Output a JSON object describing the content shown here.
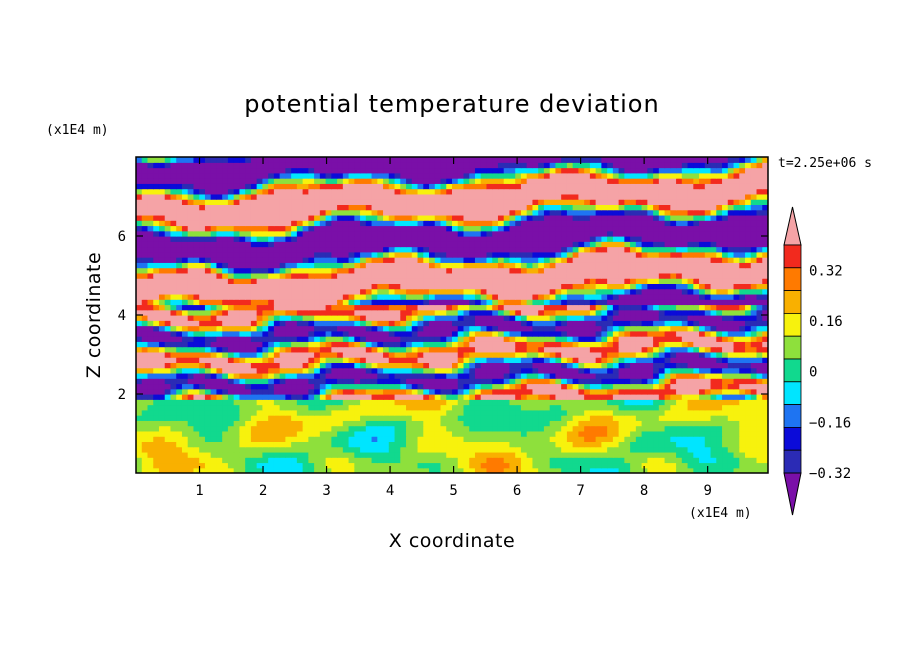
{
  "chart_data": {
    "type": "heatmap",
    "title": "potential temperature deviation",
    "xlabel": "X coordinate",
    "ylabel": "Z coordinate",
    "x_unit": "(x1E4 m)",
    "y_unit": "(x1E4 m)",
    "time_label": "t=2.25e+06 s",
    "xlim": [
      0,
      9.95
    ],
    "ylim": [
      0,
      8.0
    ],
    "x_ticks": [
      "1",
      "2",
      "3",
      "4",
      "5",
      "6",
      "7",
      "8",
      "9"
    ],
    "y_ticks": [
      "2",
      "4",
      "6"
    ],
    "colorbar": {
      "tick_labels": [
        "0.32",
        "0.16",
        "0",
        "-0.16",
        "-0.32"
      ],
      "tick_values": [
        0.32,
        0.16,
        0,
        -0.16,
        -0.32
      ],
      "levels": [
        -0.4,
        -0.32,
        -0.24,
        -0.16,
        -0.08,
        0,
        0.08,
        0.16,
        0.24,
        0.32,
        0.4
      ],
      "colors": [
        "#7a0fa8",
        "#2b2bb5",
        "#0b0bd9",
        "#1e74f2",
        "#00e5ff",
        "#11d98e",
        "#8ee03c",
        "#f7f20d",
        "#f9b000",
        "#ff7a00",
        "#f22a1e",
        "#f5a3a6"
      ],
      "extend": "both"
    },
    "field_description_bands": [
      {
        "z_range": [
          6.2,
          8.0
        ],
        "dominant": "alternating purple (<-0.40) and pink (>0.40) layers"
      },
      {
        "z_range": [
          4.0,
          6.2
        ],
        "dominant": "pink and purple layers with orange/red streaks"
      },
      {
        "z_range": [
          2.0,
          4.0
        ],
        "dominant": "mixed blue, cyan, green, pink"
      },
      {
        "z_range": [
          0.0,
          2.0
        ],
        "dominant": "green/cyan with yellow/orange eddies"
      }
    ]
  },
  "ui": {
    "colors": {
      "background": "#ffffff",
      "axes": "#000000"
    }
  }
}
